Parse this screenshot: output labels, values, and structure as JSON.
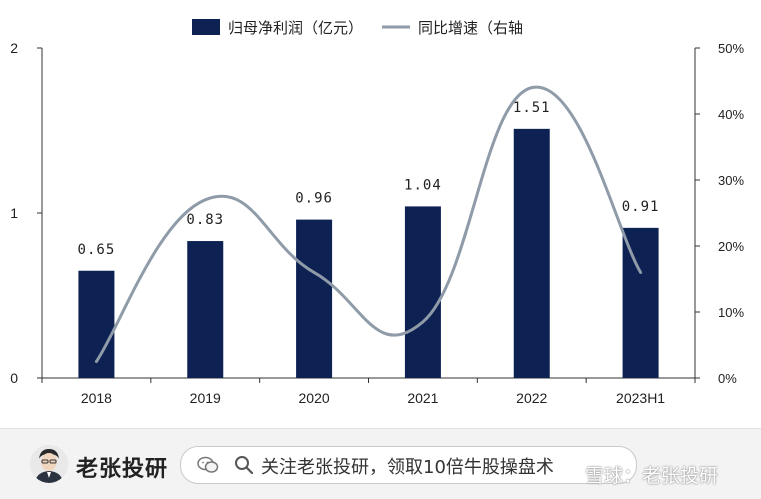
{
  "chart_data": {
    "type": "bar",
    "categories": [
      "2018",
      "2019",
      "2020",
      "2021",
      "2022",
      "2023H1"
    ],
    "series": [
      {
        "name": "归母净利润（亿元）",
        "type": "bar",
        "axis": "left",
        "values": [
          0.65,
          0.83,
          0.96,
          1.04,
          1.51,
          0.91
        ],
        "data_labels": [
          "0.65",
          "0.83",
          "0.96",
          "1.04",
          "1.51",
          "0.91"
        ],
        "color": "#0d2153"
      },
      {
        "name": "同比增速（右轴",
        "type": "line",
        "axis": "right",
        "smooth": true,
        "values": [
          2.5,
          27,
          16,
          8.5,
          44,
          16
        ],
        "color": "#8f9ba8"
      }
    ],
    "y_left": {
      "min": 0,
      "max": 2,
      "ticks": [
        0,
        1,
        2
      ],
      "tick_labels": [
        "0",
        "1",
        "2"
      ]
    },
    "y_right": {
      "min": 0,
      "max": 50,
      "ticks": [
        0,
        10,
        20,
        30,
        40,
        50
      ],
      "tick_labels": [
        "0%",
        "10%",
        "20%",
        "30%",
        "40%",
        "50%"
      ]
    },
    "legend_position": "top-center",
    "grid": false
  },
  "footer": {
    "brand": "老张投研",
    "promo": "关注老张投研，领取10倍牛股操盘术",
    "watermark": "雪球：老张投研",
    "icons": {
      "avatar": "avatar-portrait",
      "chat": "wechat-icon",
      "search": "search-icon"
    }
  }
}
